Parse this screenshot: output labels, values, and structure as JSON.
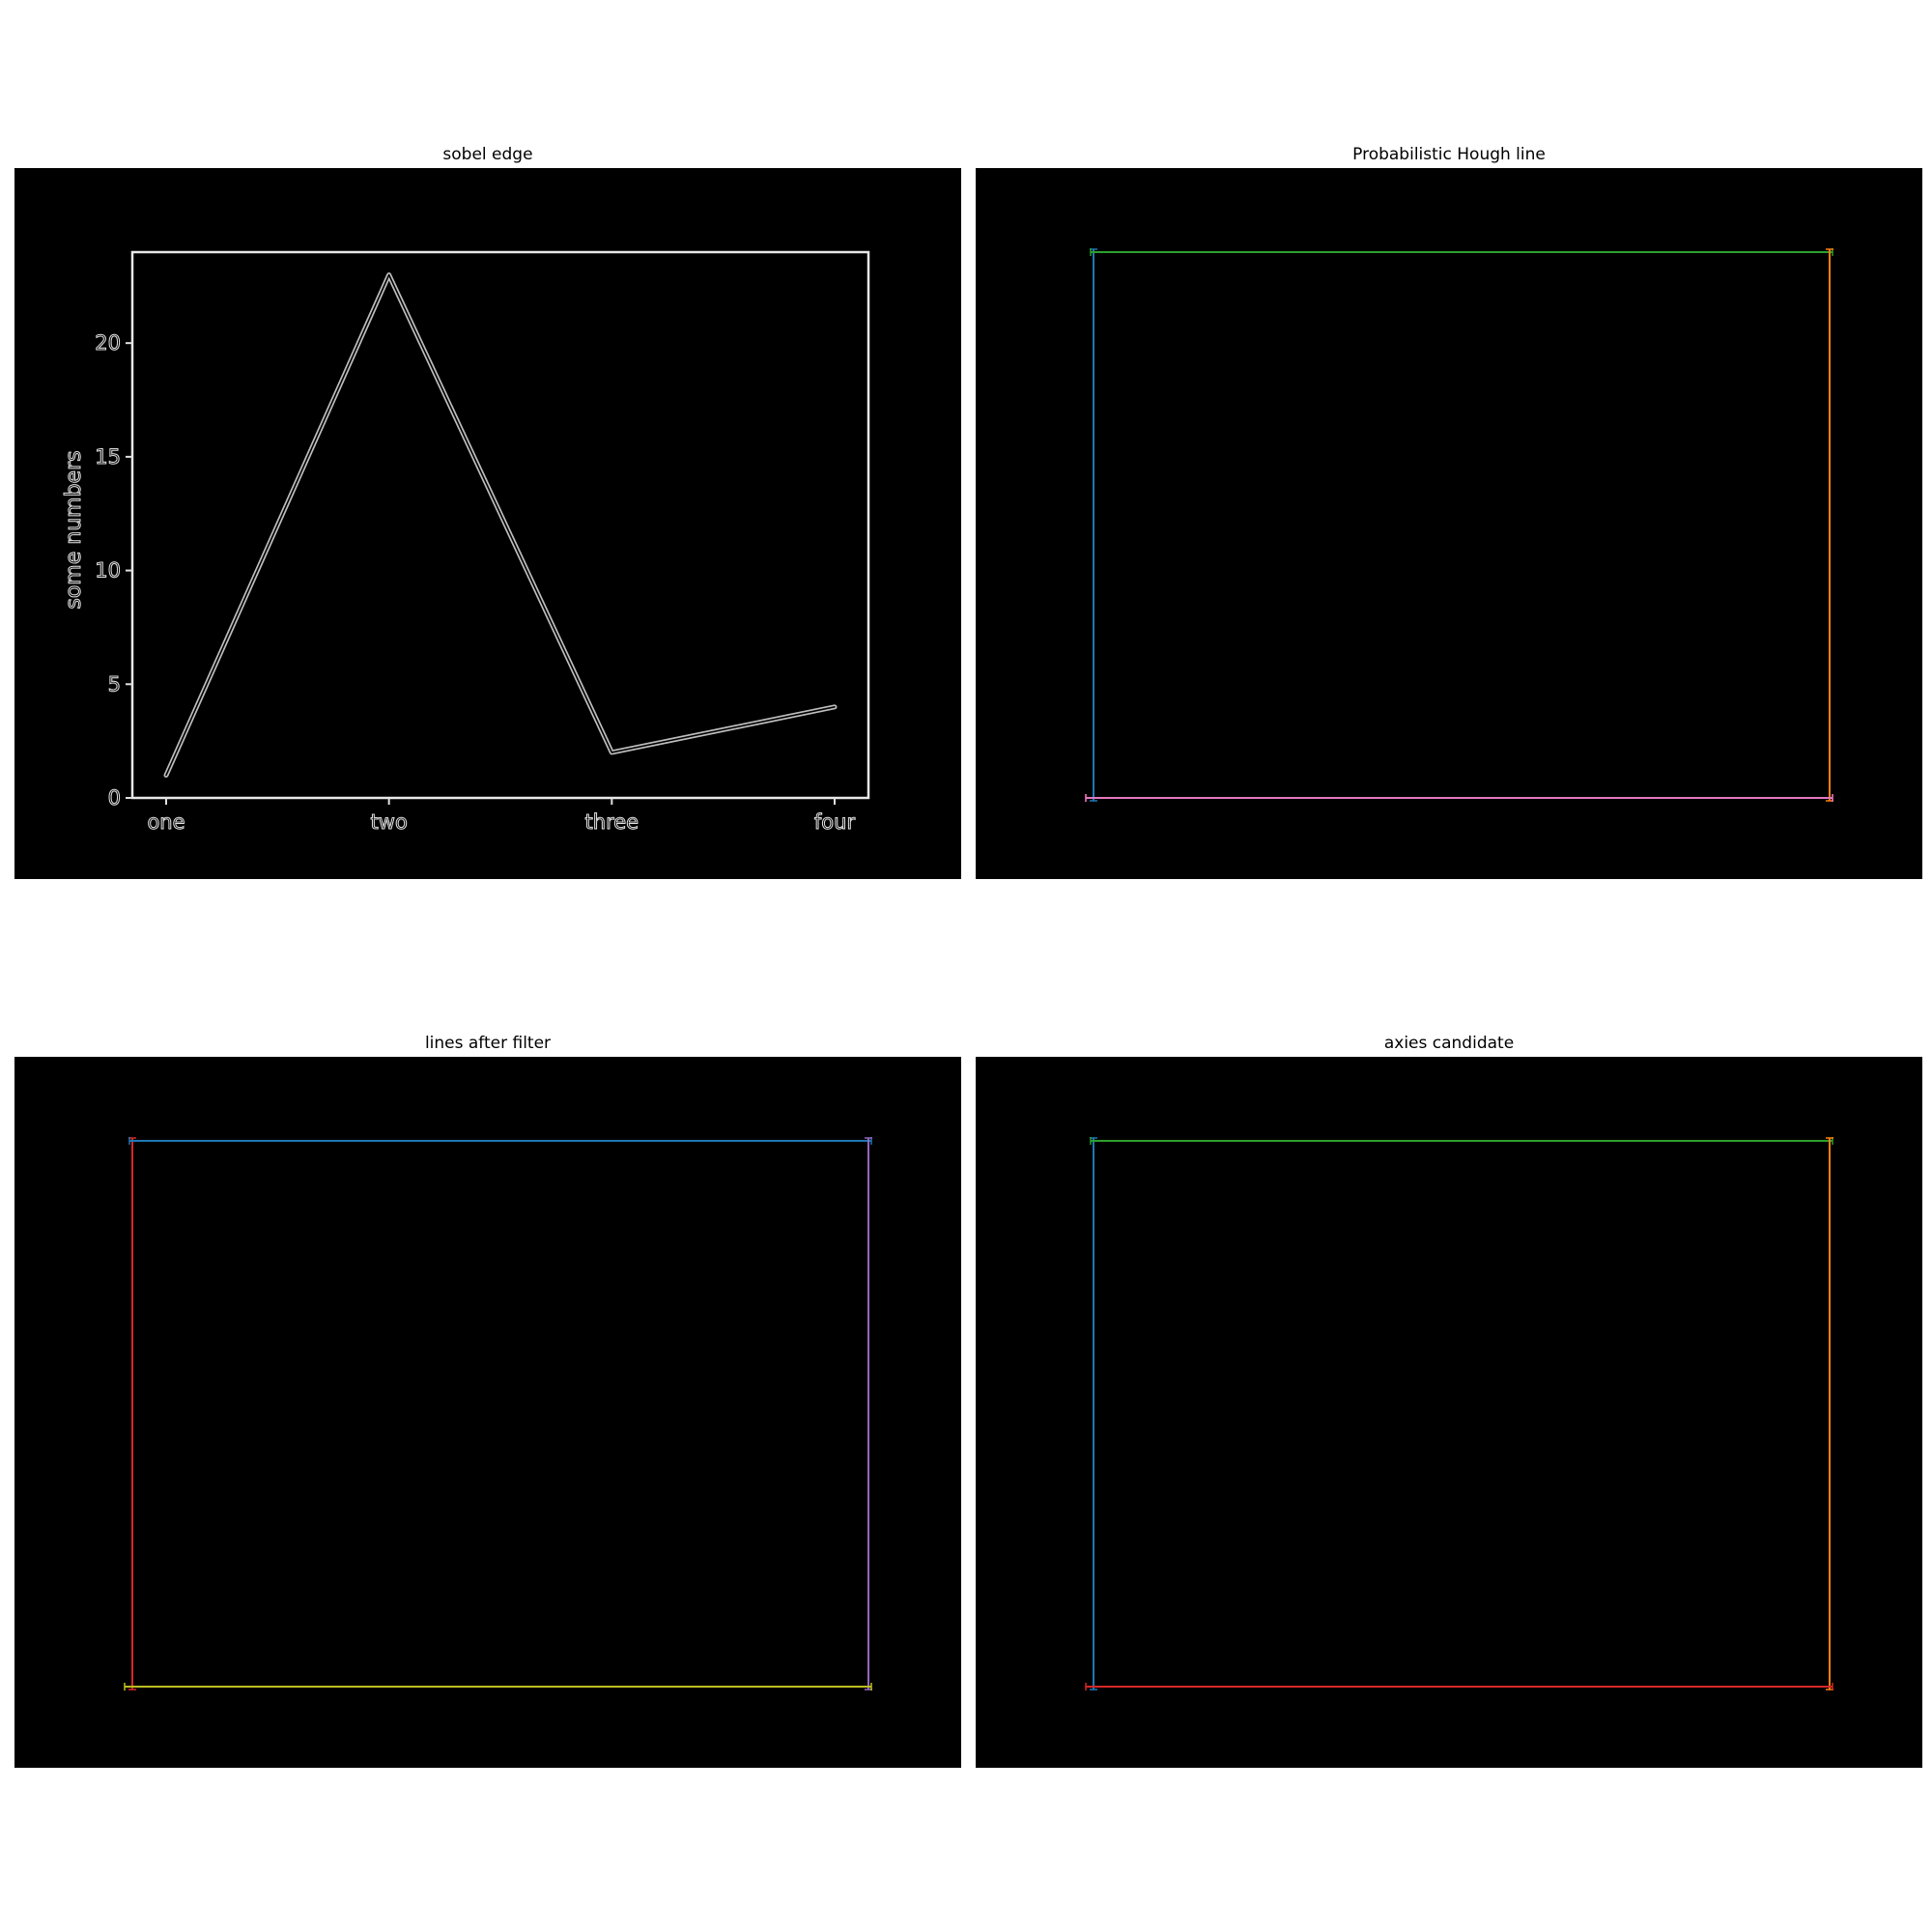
{
  "panels": [
    {
      "title": "sobel edge"
    },
    {
      "title": "Probabilistic Hough line"
    },
    {
      "title": "lines after filter"
    },
    {
      "title": "axies candidate"
    }
  ],
  "chart_data": [
    {
      "type": "line",
      "title": "sobel edge",
      "xlabel": "",
      "ylabel": "some numbers",
      "categories": [
        "one",
        "two",
        "three",
        "four"
      ],
      "values": [
        1,
        23,
        2,
        4
      ],
      "ylim": [
        0,
        24
      ],
      "yticks": [
        0,
        5,
        10,
        15,
        20
      ],
      "style": "edge-detected (white outlines on black)"
    },
    {
      "type": "line",
      "title": "Probabilistic Hough line",
      "segments": [
        {
          "side": "left",
          "color": "#1f77b4"
        },
        {
          "side": "top",
          "color": "#2ca02c"
        },
        {
          "side": "right",
          "color": "#ff7f0e"
        },
        {
          "side": "bottom",
          "color": "#d62728"
        },
        {
          "side": "bottom",
          "color": "#e377c2"
        }
      ]
    },
    {
      "type": "line",
      "title": "lines after filter",
      "segments": [
        {
          "side": "left",
          "color": "#d62728"
        },
        {
          "side": "top",
          "color": "#1f77b4"
        },
        {
          "side": "right",
          "color": "#9467bd"
        },
        {
          "side": "bottom",
          "color": "#bcbd22"
        }
      ]
    },
    {
      "type": "line",
      "title": "axies candidate",
      "segments": [
        {
          "side": "left",
          "color": "#1f77b4"
        },
        {
          "side": "top",
          "color": "#2ca02c"
        },
        {
          "side": "right",
          "color": "#ff7f0e"
        },
        {
          "side": "bottom",
          "color": "#d62728"
        }
      ]
    }
  ]
}
